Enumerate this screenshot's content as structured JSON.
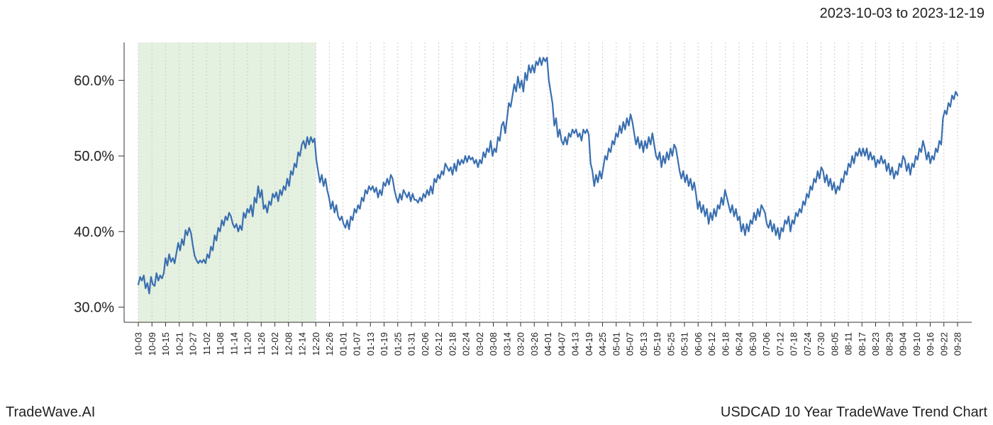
{
  "header": {
    "date_range": "2023-10-03 to 2023-12-19"
  },
  "footer": {
    "left": "TradeWave.AI",
    "right": "USDCAD 10 Year TradeWave Trend Chart"
  },
  "chart": {
    "type": "line",
    "background_color": "#ffffff",
    "axis_color": "#333333",
    "grid_color": "#cccccc",
    "tick_label_color": "#222222",
    "line_color": "#3a6fb0",
    "line_width": 2.2,
    "highlight_band": {
      "from_index": 0,
      "to_index": 13,
      "fill": "#d8ead3",
      "opacity": 0.7
    },
    "y": {
      "min": 28,
      "max": 65,
      "ticks": [
        30,
        40,
        50,
        60
      ],
      "tick_labels": [
        "30.0%",
        "40.0%",
        "50.0%",
        "60.0%"
      ],
      "label_fontsize": 20
    },
    "x": {
      "labels": [
        "10-03",
        "10-09",
        "10-15",
        "10-21",
        "10-27",
        "11-02",
        "11-08",
        "11-14",
        "11-20",
        "11-26",
        "12-02",
        "12-08",
        "12-14",
        "12-20",
        "12-26",
        "01-01",
        "01-07",
        "01-13",
        "01-19",
        "01-25",
        "01-31",
        "02-06",
        "02-12",
        "02-18",
        "02-24",
        "03-02",
        "03-08",
        "03-14",
        "03-20",
        "03-26",
        "04-01",
        "04-07",
        "04-13",
        "04-19",
        "04-25",
        "05-01",
        "05-07",
        "05-13",
        "05-19",
        "05-25",
        "05-31",
        "06-06",
        "06-12",
        "06-18",
        "06-24",
        "06-30",
        "07-06",
        "07-12",
        "07-18",
        "07-24",
        "07-30",
        "08-05",
        "08-11",
        "08-17",
        "08-23",
        "08-29",
        "09-04",
        "09-10",
        "09-16",
        "09-22",
        "09-28"
      ],
      "label_fontsize": 13
    },
    "series": {
      "name": "USDCAD Trend",
      "values": [
        33.0,
        34.0,
        33.5,
        34.2,
        32.5,
        33.2,
        31.8,
        34.0,
        33.0,
        32.8,
        34.5,
        33.5,
        34.2,
        33.8,
        34.5,
        36.5,
        35.5,
        37.0,
        36.0,
        36.5,
        35.8,
        37.2,
        38.5,
        37.5,
        39.0,
        38.2,
        40.2,
        39.5,
        40.5,
        39.8,
        38.2,
        36.8,
        36.2,
        35.8,
        36.2,
        35.9,
        36.3,
        35.8,
        37.0,
        36.5,
        38.0,
        37.5,
        39.5,
        38.8,
        40.5,
        40.0,
        41.5,
        40.8,
        42.0,
        41.5,
        42.5,
        42.0,
        41.0,
        40.5,
        41.0,
        40.0,
        40.8,
        40.2,
        42.5,
        41.8,
        43.0,
        42.5,
        43.5,
        42.0,
        44.5,
        43.8,
        46.0,
        44.5,
        45.5,
        43.0,
        43.5,
        42.5,
        44.0,
        43.5,
        45.0,
        44.5,
        45.2,
        44.0,
        45.5,
        44.8,
        46.0,
        45.5,
        47.0,
        46.0,
        48.0,
        47.5,
        49.0,
        48.5,
        50.5,
        50.0,
        51.5,
        52.0,
        51.0,
        52.5,
        51.5,
        52.5,
        51.8,
        52.3,
        49.5,
        48.0,
        46.5,
        47.5,
        46.0,
        47.0,
        45.5,
        44.5,
        43.0,
        44.0,
        42.5,
        43.5,
        42.0,
        41.5,
        42.0,
        41.0,
        40.5,
        41.5,
        40.3,
        42.0,
        41.5,
        43.0,
        42.5,
        43.5,
        43.0,
        44.5,
        44.0,
        45.5,
        45.0,
        46.0,
        45.5,
        46.0,
        45.2,
        45.8,
        44.5,
        45.5,
        44.8,
        46.5,
        46.0,
        47.0,
        46.2,
        47.5,
        47.0,
        45.5,
        44.5,
        43.8,
        45.0,
        44.2,
        45.5,
        45.0,
        44.5,
        45.2,
        44.0,
        45.0,
        44.2,
        44.2,
        43.8,
        44.5,
        44.0,
        45.0,
        44.5,
        45.5,
        44.8,
        46.0,
        45.0,
        47.0,
        46.5,
        47.5,
        47.0,
        48.0,
        47.5,
        49.0,
        48.5,
        48.0,
        48.5,
        47.5,
        49.0,
        48.0,
        49.5,
        48.8,
        49.5,
        49.0,
        50.0,
        49.2,
        50.0,
        49.5,
        49.8,
        49.0,
        49.5,
        48.5,
        49.5,
        49.0,
        50.5,
        49.8,
        51.0,
        50.5,
        52.0,
        50.0,
        51.0,
        50.5,
        52.5,
        52.0,
        54.0,
        54.5,
        53.0,
        55.0,
        57.0,
        56.5,
        58.0,
        59.5,
        58.5,
        60.5,
        59.0,
        60.0,
        58.5,
        61.0,
        60.0,
        62.0,
        61.0,
        62.0,
        61.0,
        62.5,
        62.0,
        63.0,
        62.0,
        63.0,
        62.5,
        63.0,
        60.0,
        58.5,
        57.0,
        54.0,
        55.0,
        52.5,
        53.5,
        52.0,
        51.5,
        52.5,
        51.5,
        53.0,
        52.5,
        53.5,
        53.0,
        53.5,
        52.5,
        53.0,
        52.0,
        53.5,
        53.0,
        53.5,
        52.8,
        49.0,
        48.0,
        46.0,
        47.5,
        46.5,
        48.0,
        47.0,
        48.5,
        50.0,
        49.5,
        51.0,
        50.5,
        52.0,
        51.5,
        53.0,
        52.5,
        54.0,
        53.0,
        54.5,
        53.5,
        55.0,
        54.0,
        55.5,
        54.5,
        53.0,
        51.5,
        52.5,
        51.0,
        52.0,
        50.5,
        52.0,
        51.0,
        52.5,
        51.5,
        53.0,
        51.5,
        50.0,
        49.5,
        50.5,
        48.5,
        50.0,
        49.0,
        50.5,
        49.5,
        51.0,
        50.0,
        51.5,
        51.0,
        49.5,
        48.0,
        47.0,
        48.0,
        46.5,
        47.5,
        46.0,
        47.0,
        45.5,
        46.5,
        45.0,
        43.0,
        44.0,
        42.5,
        43.5,
        42.0,
        43.0,
        41.0,
        42.5,
        41.5,
        43.0,
        42.0,
        43.5,
        43.0,
        44.5,
        43.5,
        45.5,
        44.5,
        43.5,
        42.5,
        43.5,
        42.0,
        43.0,
        41.5,
        42.0,
        40.0,
        41.0,
        39.5,
        41.0,
        40.0,
        41.5,
        41.0,
        42.5,
        41.5,
        43.0,
        42.0,
        43.5,
        43.0,
        42.5,
        41.0,
        40.5,
        41.5,
        40.0,
        41.0,
        39.5,
        40.5,
        39.0,
        40.5,
        40.0,
        41.5,
        41.0,
        42.0,
        40.0,
        41.5,
        41.0,
        42.5,
        42.0,
        43.0,
        42.5,
        44.0,
        43.5,
        45.0,
        44.5,
        46.0,
        45.5,
        47.0,
        46.5,
        48.0,
        47.0,
        48.5,
        48.0,
        46.5,
        47.5,
        46.0,
        47.0,
        45.5,
        46.5,
        45.0,
        46.0,
        45.5,
        47.0,
        46.5,
        48.0,
        47.5,
        49.0,
        48.5,
        50.0,
        49.0,
        50.5,
        50.0,
        51.0,
        50.0,
        51.0,
        50.0,
        51.0,
        49.5,
        50.5,
        49.5,
        50.0,
        48.5,
        49.5,
        49.0,
        50.0,
        49.0,
        49.5,
        48.0,
        49.0,
        47.5,
        48.5,
        47.0,
        48.0,
        47.5,
        49.0,
        48.5,
        50.0,
        49.5,
        48.0,
        49.0,
        47.5,
        49.0,
        48.5,
        50.0,
        49.5,
        51.0,
        50.5,
        52.0,
        51.0,
        49.5,
        50.5,
        49.0,
        50.0,
        49.5,
        51.0,
        50.5,
        52.0,
        51.5,
        55.0,
        56.0,
        55.5,
        57.0,
        56.5,
        58.0,
        57.5,
        58.5,
        58.0
      ]
    }
  }
}
